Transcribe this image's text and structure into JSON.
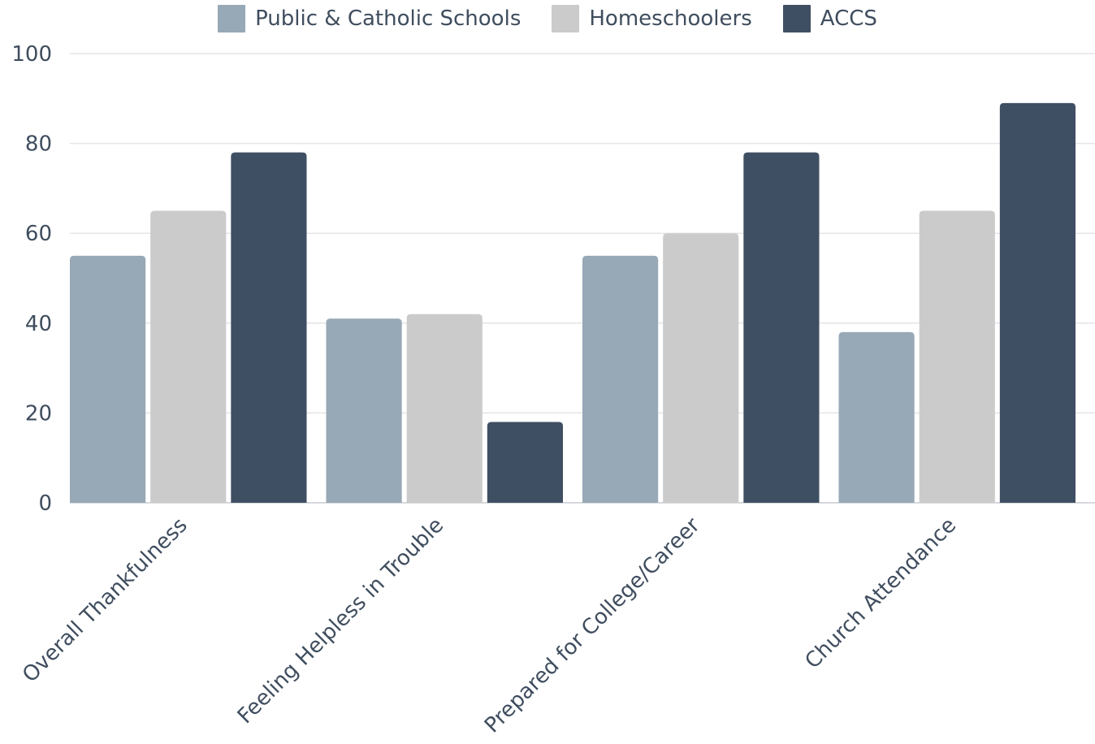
{
  "chart_data": {
    "type": "bar",
    "categories": [
      "Overall Thankfulness",
      "Feeling Helpless in Trouble",
      "Prepared for College/Career",
      "Church Attendance"
    ],
    "series": [
      {
        "name": "Public & Catholic Schools",
        "color": "#97a8b6",
        "values": [
          55,
          41,
          55,
          38
        ]
      },
      {
        "name": "Homeschoolers",
        "color": "#cbcbcb",
        "values": [
          65,
          42,
          60,
          65
        ]
      },
      {
        "name": "ACCS",
        "color": "#3f4f63",
        "values": [
          78,
          18,
          78,
          89
        ]
      }
    ],
    "ylim": [
      0,
      100
    ],
    "yticks": [
      0,
      20,
      40,
      60,
      80,
      100
    ],
    "grid": true,
    "legend": "top"
  }
}
